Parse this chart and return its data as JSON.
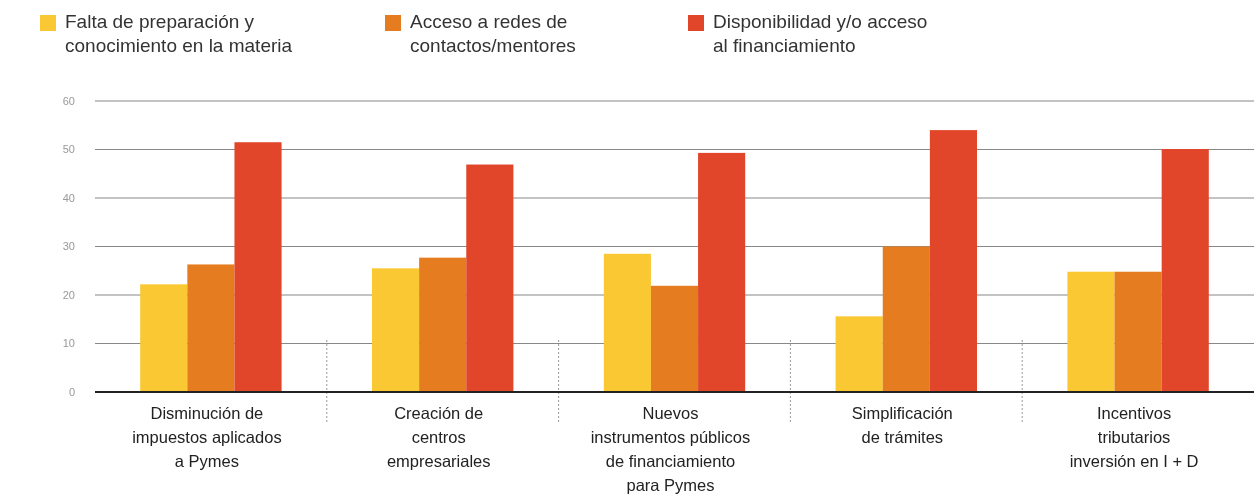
{
  "chart_data": {
    "type": "bar",
    "categories": [
      "Disminución de\nimpuestos aplicados\na Pymes",
      "Creación de\ncentros\nempresariales",
      "Nuevos\ninstrumentos públicos\nde financiamiento\npara Pymes",
      "Simplificación\nde trámites",
      "Incentivos\ntributarios\ninversión en I + D"
    ],
    "series": [
      {
        "name": "Falta de preparación y\nconocimiento en la materia",
        "color": "#f9c832",
        "values": [
          22.2,
          25.5,
          28.5,
          15.6,
          24.8
        ]
      },
      {
        "name": "Acceso a redes de\ncontactos/mentores",
        "color": "#e57d20",
        "values": [
          26.3,
          27.7,
          21.9,
          30.0,
          24.8
        ]
      },
      {
        "name": "Disponibilidad y/o acceso\nal financiamiento",
        "color": "#e2462a",
        "values": [
          51.5,
          46.9,
          49.3,
          54.0,
          50.1
        ]
      }
    ],
    "ylim": [
      0,
      60
    ],
    "yticks": [
      0,
      10,
      20,
      30,
      40,
      50,
      60
    ],
    "grid": "y",
    "legend": "top left"
  }
}
